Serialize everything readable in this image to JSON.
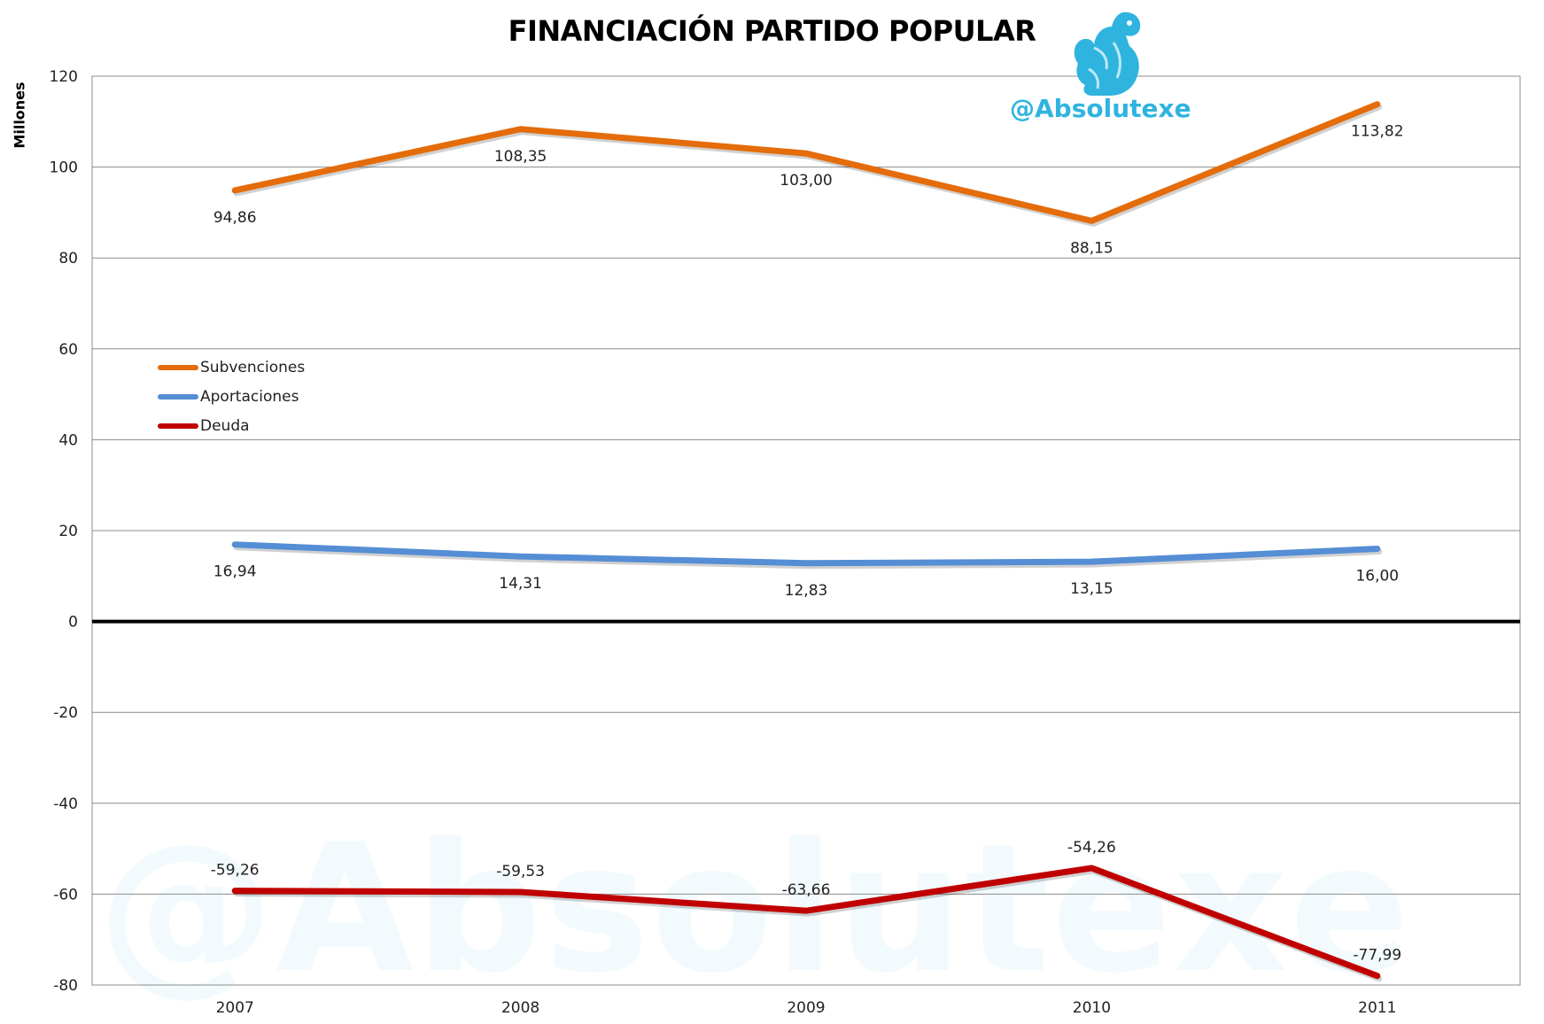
{
  "watermark": {
    "handle": "@Absolutexe",
    "big_text": "@Absolutexe",
    "brand_color": "#2fb4df"
  },
  "chart_data": {
    "type": "line",
    "title": "FINANCIACIÓN PARTIDO POPULAR",
    "xlabel": "",
    "ylabel": "Millones",
    "ylim": [
      -80,
      120
    ],
    "yticks": [
      120,
      100,
      80,
      60,
      40,
      20,
      0,
      -20,
      -40,
      -60,
      -80
    ],
    "grid": true,
    "legend_placement": "left",
    "categories": [
      "2007",
      "2008",
      "2009",
      "2010",
      "2011"
    ],
    "series": [
      {
        "name": "Subvenciones",
        "color": "#e46c0a",
        "values": [
          94.86,
          108.35,
          103.0,
          88.15,
          113.82
        ],
        "labels": [
          "94,86",
          "108,35",
          "103,00",
          "88,15",
          "113,82"
        ]
      },
      {
        "name": "Aportaciones",
        "color": "#558ed5",
        "values": [
          16.94,
          14.31,
          12.83,
          13.15,
          16.0
        ],
        "labels": [
          "16,94",
          "14,31",
          "12,83",
          "13,15",
          "16,00"
        ]
      },
      {
        "name": "Deuda",
        "color": "#c00000",
        "values": [
          -59.26,
          -59.53,
          -63.66,
          -54.26,
          -77.99
        ],
        "labels": [
          "-59,26",
          "-59,53",
          "-63,66",
          "-54,26",
          "-77,99"
        ]
      }
    ]
  }
}
